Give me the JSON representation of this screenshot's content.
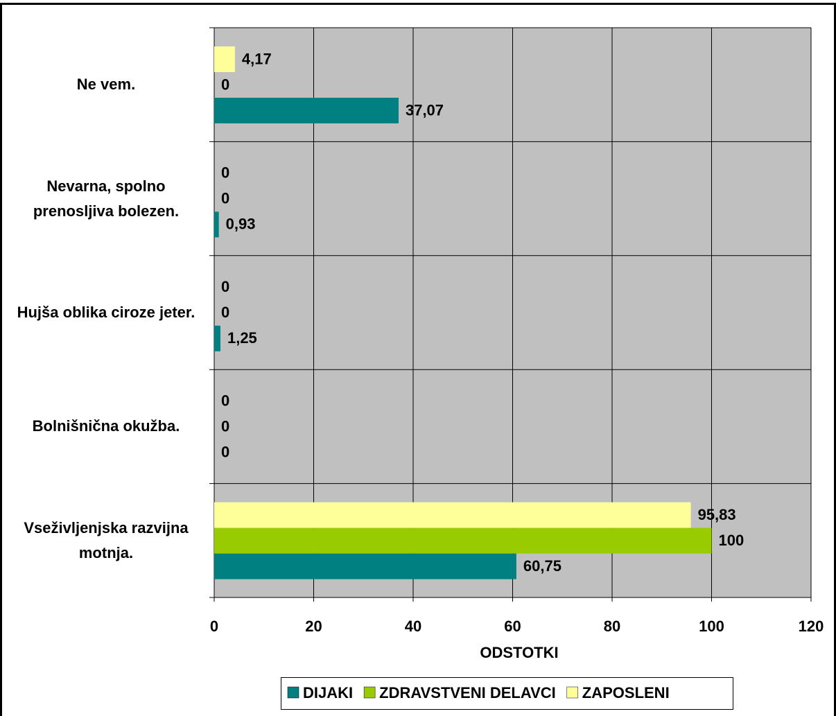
{
  "chart_data": {
    "type": "hbar",
    "categories": [
      "Ne vem.",
      "Nevarna, spolno prenosljiva bolezen.",
      "Hujša oblika ciroze jeter.",
      "Bolnišnična okužba.",
      "Vseživljenjska razvijna motnja."
    ],
    "series": [
      {
        "name": "DIJAKI",
        "color": "#008080",
        "values": [
          37.07,
          0.93,
          1.25,
          0,
          60.75
        ],
        "value_labels": [
          "37,07",
          "0,93",
          "1,25",
          "0",
          "60,75"
        ]
      },
      {
        "name": "ZDRAVSTVENI DELAVCI",
        "color": "#99cc00",
        "values": [
          0,
          0,
          0,
          0,
          100
        ],
        "value_labels": [
          "0",
          "0",
          "0",
          "0",
          "100"
        ]
      },
      {
        "name": "ZAPOSLENI",
        "color": "#ffff99",
        "values": [
          4.17,
          0,
          0,
          0,
          95.83
        ],
        "value_labels": [
          "4,17",
          "0",
          "0",
          "0",
          "95,83"
        ]
      }
    ],
    "xlabel": "ODSTOTKI",
    "xlim": [
      0,
      120
    ],
    "xticks": [
      0,
      20,
      40,
      60,
      80,
      100,
      120
    ],
    "grid": true
  }
}
